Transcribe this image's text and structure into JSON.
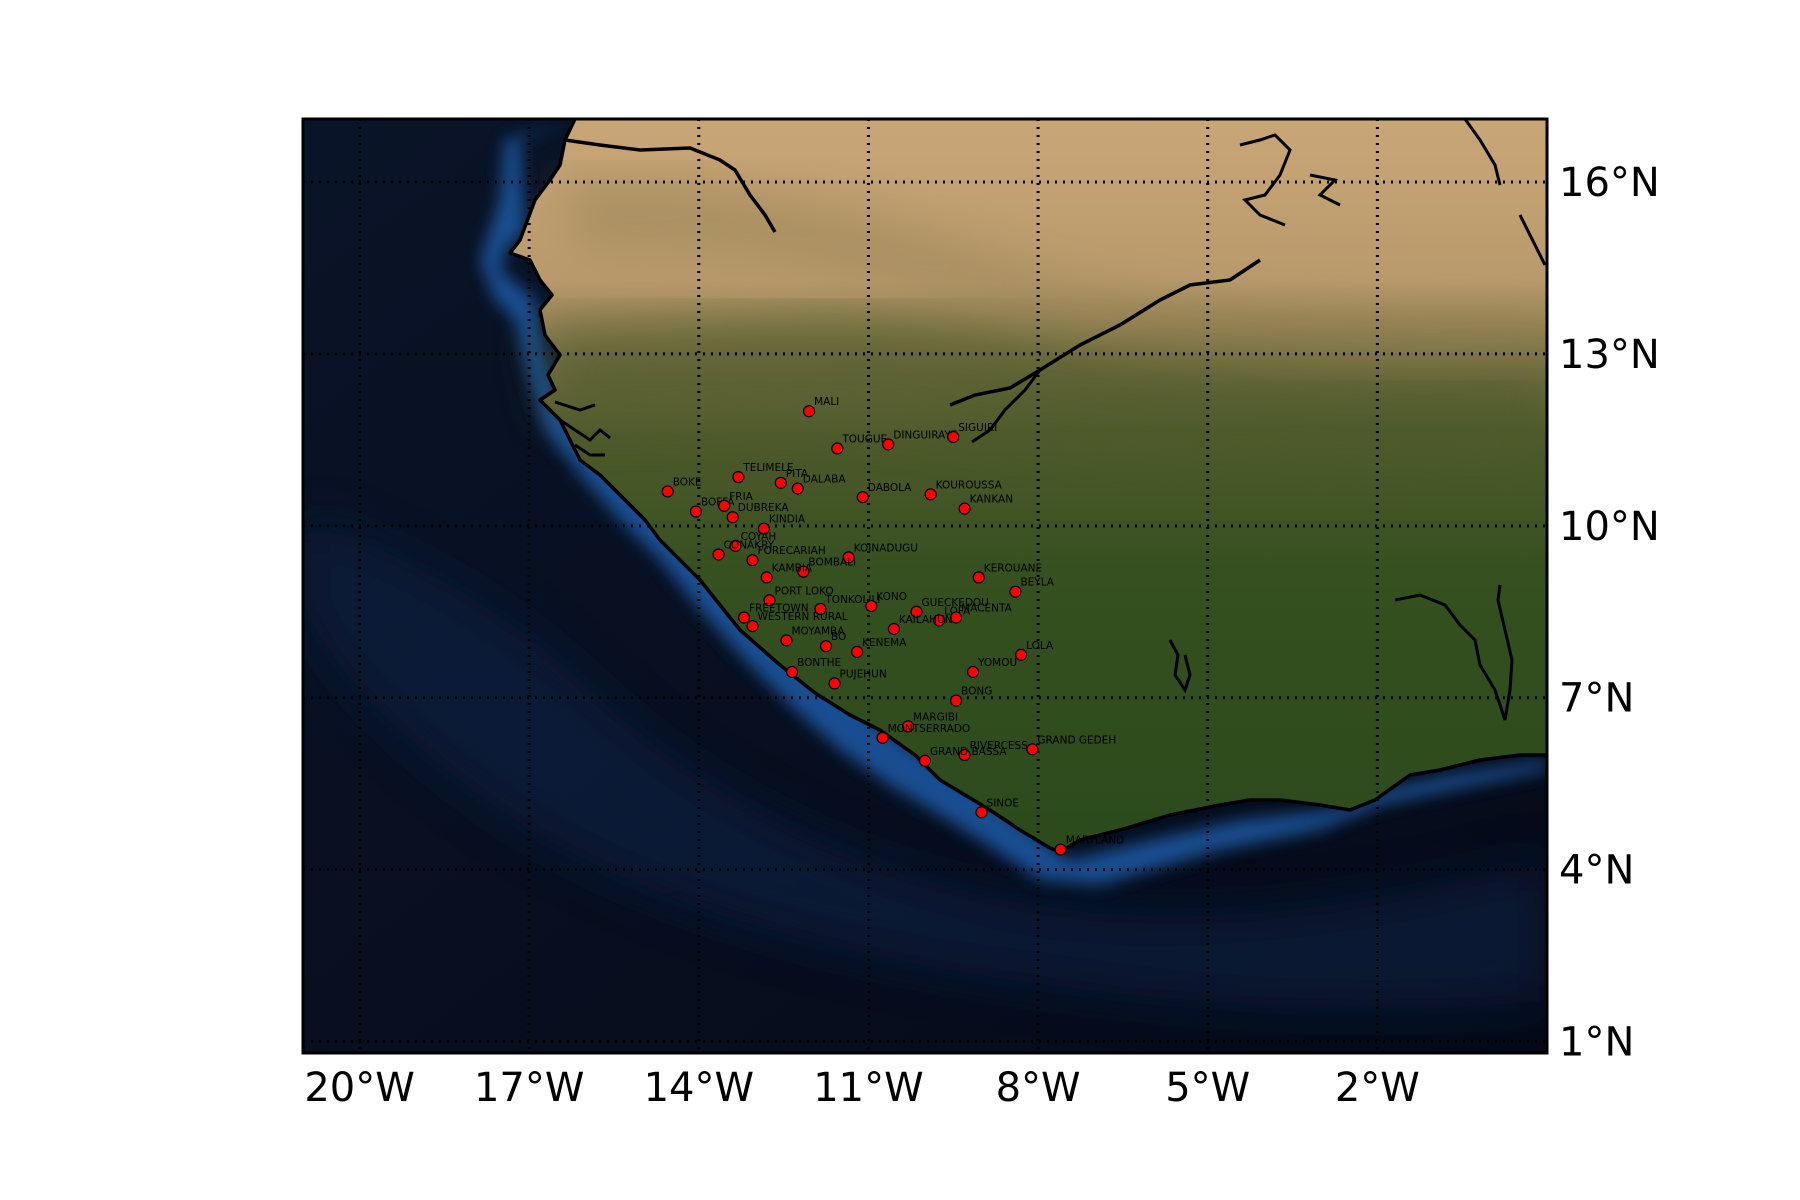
{
  "map": {
    "lon_range": [
      -21,
      1
    ],
    "lat_range": [
      0.8,
      17.1
    ],
    "colors": {
      "ocean_deep": "#070d1c",
      "ocean_shelf": "#1a4f93",
      "desert": "#caa478",
      "savanna": "#5a5a2a",
      "forest": "#2f4a1f",
      "coastline": "#000000",
      "marker": "#ff0000"
    },
    "x_ticks": [
      {
        "lon": -20,
        "label": "20°W"
      },
      {
        "lon": -17,
        "label": "17°W"
      },
      {
        "lon": -14,
        "label": "14°W"
      },
      {
        "lon": -11,
        "label": "11°W"
      },
      {
        "lon": -8,
        "label": "8°W"
      },
      {
        "lon": -5,
        "label": "5°W"
      },
      {
        "lon": -2,
        "label": "2°W"
      }
    ],
    "y_ticks": [
      {
        "lat": 16,
        "label": "16°N"
      },
      {
        "lat": 13,
        "label": "13°N"
      },
      {
        "lat": 10,
        "label": "10°N"
      },
      {
        "lat": 7,
        "label": "7°N"
      },
      {
        "lat": 4,
        "label": "4°N"
      },
      {
        "lat": 1,
        "label": "1°N"
      }
    ],
    "grid": "dotted",
    "places": [
      {
        "name": "MALI",
        "lon": -12.05,
        "lat": 12.0
      },
      {
        "name": "TOUGUE",
        "lon": -11.55,
        "lat": 11.35
      },
      {
        "name": "DINGUIRAYE",
        "lon": -10.65,
        "lat": 11.42
      },
      {
        "name": "SIGUIRI",
        "lon": -9.5,
        "lat": 11.55
      },
      {
        "name": "TELIMELE",
        "lon": -13.3,
        "lat": 10.85
      },
      {
        "name": "PITA",
        "lon": -12.55,
        "lat": 10.75
      },
      {
        "name": "DALABA",
        "lon": -12.25,
        "lat": 10.65
      },
      {
        "name": "BOKE",
        "lon": -14.55,
        "lat": 10.6
      },
      {
        "name": "DABOLA",
        "lon": -11.1,
        "lat": 10.5
      },
      {
        "name": "KOUROUSSA",
        "lon": -9.9,
        "lat": 10.55
      },
      {
        "name": "KANKAN",
        "lon": -9.3,
        "lat": 10.3
      },
      {
        "name": "BOFFA",
        "lon": -14.05,
        "lat": 10.25
      },
      {
        "name": "FRIA",
        "lon": -13.55,
        "lat": 10.35
      },
      {
        "name": "DUBREKA",
        "lon": -13.4,
        "lat": 10.15
      },
      {
        "name": "KINDIA",
        "lon": -12.85,
        "lat": 9.95
      },
      {
        "name": "COYAH",
        "lon": -13.35,
        "lat": 9.65
      },
      {
        "name": "CONAKRY",
        "lon": -13.65,
        "lat": 9.5
      },
      {
        "name": "FORECARIAH",
        "lon": -13.05,
        "lat": 9.4
      },
      {
        "name": "KOINADUGU",
        "lon": -11.35,
        "lat": 9.45
      },
      {
        "name": "BOMBALI",
        "lon": -12.15,
        "lat": 9.2
      },
      {
        "name": "KAMBIA",
        "lon": -12.8,
        "lat": 9.1
      },
      {
        "name": "KEROUANE",
        "lon": -9.05,
        "lat": 9.1
      },
      {
        "name": "BEYLA",
        "lon": -8.4,
        "lat": 8.85
      },
      {
        "name": "PORT LOKO",
        "lon": -12.75,
        "lat": 8.7
      },
      {
        "name": "TONKOLILI",
        "lon": -11.85,
        "lat": 8.55
      },
      {
        "name": "KONO",
        "lon": -10.95,
        "lat": 8.6
      },
      {
        "name": "GUECKEDOU",
        "lon": -10.15,
        "lat": 8.5
      },
      {
        "name": "LOFA",
        "lon": -9.75,
        "lat": 8.35
      },
      {
        "name": "MACENTA",
        "lon": -9.45,
        "lat": 8.4
      },
      {
        "name": "FREETOWN",
        "lon": -13.2,
        "lat": 8.4
      },
      {
        "name": "WESTERN RURAL",
        "lon": -13.05,
        "lat": 8.25
      },
      {
        "name": "KAILAHUN",
        "lon": -10.55,
        "lat": 8.2
      },
      {
        "name": "MOYAMBA",
        "lon": -12.45,
        "lat": 8.0
      },
      {
        "name": "BO",
        "lon": -11.75,
        "lat": 7.9
      },
      {
        "name": "KENEMA",
        "lon": -11.2,
        "lat": 7.8
      },
      {
        "name": "LOLA",
        "lon": -8.3,
        "lat": 7.75
      },
      {
        "name": "YOMOU",
        "lon": -9.15,
        "lat": 7.45
      },
      {
        "name": "BONTHE",
        "lon": -12.35,
        "lat": 7.45
      },
      {
        "name": "PUJEHUN",
        "lon": -11.6,
        "lat": 7.25
      },
      {
        "name": "BONG",
        "lon": -9.45,
        "lat": 6.95
      },
      {
        "name": "MARGIBI",
        "lon": -10.3,
        "lat": 6.5
      },
      {
        "name": "MONTSERRADO",
        "lon": -10.75,
        "lat": 6.3
      },
      {
        "name": "GRAND GEDEH",
        "lon": -8.1,
        "lat": 6.1
      },
      {
        "name": "RIVERCESS",
        "lon": -9.3,
        "lat": 6.0
      },
      {
        "name": "GRAND BASSA",
        "lon": -10.0,
        "lat": 5.9
      },
      {
        "name": "SINOE",
        "lon": -9.0,
        "lat": 5.0
      },
      {
        "name": "MARYLAND",
        "lon": -7.6,
        "lat": 4.35
      }
    ]
  }
}
